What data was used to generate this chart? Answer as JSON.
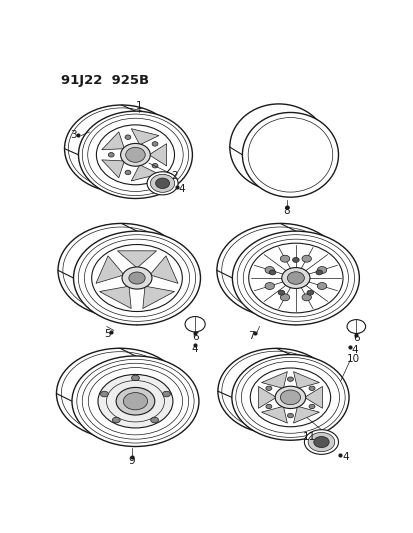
{
  "title": "91J22  925B",
  "bg_color": "#ffffff",
  "line_color": "#1a1a1a",
  "title_fontsize": 9.5,
  "label_fontsize": 7.5
}
